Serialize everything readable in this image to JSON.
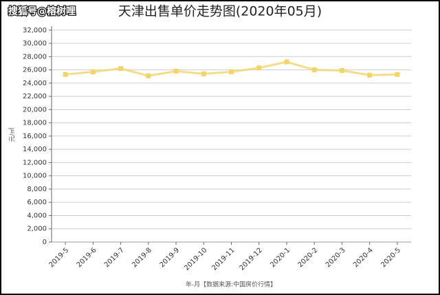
{
  "chart_data": {
    "type": "line",
    "title": "天津出售单价走势图(2020年05月)",
    "watermark": "搜狐号@榕树哩",
    "ylabel": "元/㎡",
    "xlabel": "年-月【数据来源:中国房价行情】",
    "categories": [
      "2019-5",
      "2019-6",
      "2019-7",
      "2019-8",
      "2019-9",
      "2019-10",
      "2019-11",
      "2019-12",
      "2020-1",
      "2020-2",
      "2020-3",
      "2020-4",
      "2020-5"
    ],
    "series": [
      {
        "color": "#f3d36a",
        "values": [
          25300,
          25700,
          26200,
          25100,
          25800,
          25400,
          25700,
          26300,
          27200,
          26000,
          25900,
          25200,
          25300
        ]
      }
    ],
    "ylim": [
      0,
      32600
    ],
    "yticks": [
      0,
      {
        "value": 2000,
        "label": "2,000"
      },
      {
        "value": 4000,
        "label": "4,000"
      },
      {
        "value": 6000,
        "label": "6,000"
      },
      {
        "value": 8000,
        "label": "8,000"
      },
      {
        "value": 10000,
        "label": "10,000"
      },
      {
        "value": 12000,
        "label": "12,000"
      },
      {
        "value": 14000,
        "label": "14,000"
      },
      {
        "value": 16000,
        "label": "16,000"
      },
      {
        "value": 18000,
        "label": "18,000"
      },
      {
        "value": 20000,
        "label": "20,000"
      },
      {
        "value": 22000,
        "label": "22,000"
      },
      {
        "value": 24000,
        "label": "24,000"
      },
      {
        "value": 26000,
        "label": "26,000"
      },
      {
        "value": 28000,
        "label": "28,000"
      },
      {
        "value": 30000,
        "label": "30,000"
      },
      {
        "value": 32000,
        "label": "32,000"
      }
    ],
    "grid": true
  }
}
